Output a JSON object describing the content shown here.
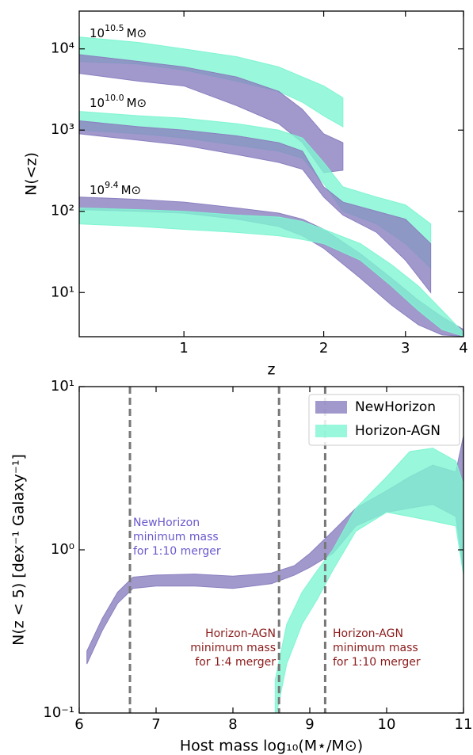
{
  "chart_data": [
    {
      "type": "band",
      "x_label": "z",
      "y_label": "N(<z)",
      "xlog": true,
      "ylog": true,
      "xlim": [
        0.595,
        4
      ],
      "ylim": [
        2.86,
        29200
      ],
      "xticks": [
        1,
        2,
        3,
        4
      ],
      "yticks": [
        {
          "value": 10,
          "label": "10¹"
        },
        {
          "value": 100,
          "label": "10²"
        },
        {
          "value": 1000,
          "label": "10³"
        },
        {
          "value": 10000,
          "label": "10⁴"
        }
      ],
      "annotations": [
        {
          "base": "10",
          "exp": "10.5",
          "unit": "M⊙"
        },
        {
          "base": "10",
          "exp": "10.0",
          "unit": "M⊙"
        },
        {
          "base": "10",
          "exp": "9.4",
          "unit": "M⊙"
        }
      ],
      "series": [
        {
          "color": "#80f5d2",
          "x": [
            0.595,
            0.8,
            1.0,
            1.3,
            1.6,
            1.8,
            2.0,
            2.2
          ],
          "upper": [
            14000,
            12000,
            10000,
            8000,
            6000,
            4500,
            3500,
            2500
          ],
          "lower": [
            7000,
            6500,
            5500,
            4000,
            3000,
            2200,
            1500,
            1100
          ]
        },
        {
          "color": "#8a80bf",
          "x": [
            0.595,
            0.8,
            1.0,
            1.3,
            1.6,
            1.8,
            2.0,
            2.2
          ],
          "upper": [
            8500,
            7000,
            6000,
            4500,
            3000,
            1800,
            900,
            700
          ],
          "lower": [
            5000,
            4000,
            3500,
            2000,
            1200,
            700,
            300,
            320
          ]
        },
        {
          "color": "#80f5d2",
          "x": [
            0.595,
            0.8,
            1.0,
            1.3,
            1.6,
            1.8,
            2.0,
            2.2,
            2.6,
            3.0,
            3.4
          ],
          "upper": [
            1700,
            1500,
            1400,
            1200,
            1000,
            800,
            400,
            200,
            150,
            120,
            70
          ],
          "lower": [
            1000,
            900,
            800,
            650,
            550,
            450,
            220,
            100,
            70,
            40,
            20
          ]
        },
        {
          "color": "#8a80bf",
          "x": [
            0.595,
            0.8,
            1.0,
            1.3,
            1.6,
            1.8,
            2.0,
            2.2,
            2.6,
            3.0,
            3.4
          ],
          "upper": [
            1300,
            1100,
            1000,
            850,
            700,
            550,
            200,
            130,
            100,
            80,
            40
          ],
          "lower": [
            900,
            750,
            650,
            500,
            400,
            330,
            150,
            90,
            55,
            25,
            10
          ]
        },
        {
          "color": "#8a80bf",
          "x": [
            0.595,
            0.8,
            1.0,
            1.3,
            1.6,
            1.8,
            2.0,
            2.4,
            2.8,
            3.2,
            3.6,
            4.0
          ],
          "upper": [
            150,
            140,
            130,
            110,
            95,
            80,
            60,
            30,
            15,
            8,
            5,
            3.5
          ],
          "lower": [
            105,
            100,
            95,
            80,
            65,
            50,
            35,
            15,
            7,
            4,
            3,
            2.9
          ]
        },
        {
          "color": "#80f5d2",
          "x": [
            0.595,
            0.8,
            1.0,
            1.3,
            1.6,
            1.8,
            2.0,
            2.4,
            2.8,
            3.2,
            3.6,
            4.0
          ],
          "upper": [
            110,
            105,
            100,
            90,
            85,
            75,
            60,
            40,
            22,
            12,
            6,
            3.2
          ],
          "lower": [
            70,
            65,
            60,
            55,
            50,
            45,
            40,
            25,
            12,
            6,
            3.5,
            2.9
          ]
        }
      ]
    },
    {
      "type": "band",
      "x_label": "Host mass log₁₀(M⋆/M⊙)",
      "y_label": "N(z < 5) [dex⁻¹ Galaxy⁻¹]",
      "xlog": false,
      "ylog": true,
      "xlim": [
        6,
        11
      ],
      "ylim": [
        0.1,
        10
      ],
      "xticks": [
        6,
        7,
        8,
        9,
        10,
        11
      ],
      "yticks": [
        {
          "value": 0.1,
          "label": "10⁻¹"
        },
        {
          "value": 1,
          "label": "10⁰"
        },
        {
          "value": 10,
          "label": "10¹"
        }
      ],
      "legend": "upper right",
      "vlines": [
        6.66,
        8.6,
        9.2
      ],
      "annotations": [
        {
          "lines": [
            "NewHorizon",
            "minimum mass",
            "for 1:10 merger"
          ],
          "color": "#6a5acd"
        },
        {
          "lines": [
            "Horizon-AGN",
            "minimum mass",
            "for 1:4 merger"
          ],
          "color": "#8b1a1a"
        },
        {
          "lines": [
            "Horizon-AGN",
            "minimum mass",
            "for 1:10 merger"
          ],
          "color": "#8b1a1a"
        }
      ],
      "series": [
        {
          "name": "NewHorizon",
          "color": "#8a80bf",
          "x": [
            6.1,
            6.3,
            6.5,
            6.7,
            7.0,
            7.5,
            8.0,
            8.5,
            8.8,
            9.0,
            9.3,
            9.6,
            10.0,
            10.3,
            10.6,
            10.9,
            11.0
          ],
          "upper": [
            0.24,
            0.38,
            0.55,
            0.68,
            0.7,
            0.71,
            0.69,
            0.72,
            0.8,
            0.95,
            1.3,
            1.8,
            2.3,
            2.8,
            3.3,
            3.0,
            5.0
          ],
          "lower": [
            0.2,
            0.32,
            0.47,
            0.58,
            0.6,
            0.6,
            0.58,
            0.62,
            0.7,
            0.78,
            0.95,
            1.4,
            1.7,
            1.8,
            1.9,
            1.6,
            0.75
          ]
        },
        {
          "name": "Horizon-AGN",
          "color": "#80f5d2",
          "x": [
            8.55,
            8.7,
            8.9,
            9.1,
            9.3,
            9.6,
            10.0,
            10.3,
            10.6,
            10.9,
            11.0
          ],
          "upper": [
            0.16,
            0.35,
            0.55,
            0.75,
            1.0,
            1.8,
            2.8,
            4.0,
            4.2,
            3.5,
            2.5
          ],
          "lower": [
            0.09,
            0.2,
            0.35,
            0.5,
            0.75,
            1.3,
            1.7,
            1.6,
            1.5,
            1.4,
            0.7
          ]
        }
      ]
    }
  ]
}
